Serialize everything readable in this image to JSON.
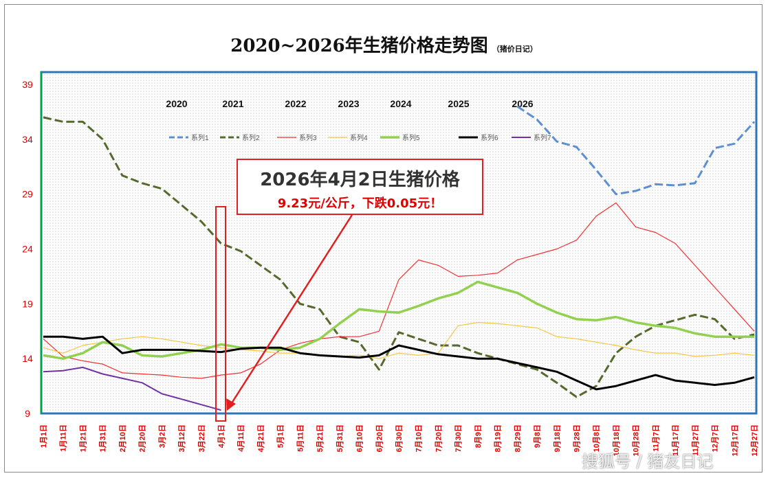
{
  "title": "2020~2026年生猪价格走势图",
  "subtitle": "（猪价日记）",
  "callout": {
    "line1": "2026年4月2日生猪价格",
    "line2": "9.23元/公斤，下跌0.05元！"
  },
  "watermark": "搜狐号 / 猪友日记",
  "colors": {
    "series1": "#5b8fd0",
    "series2": "#55692d",
    "series3": "#f03030",
    "series4": "#f5c542",
    "series5": "#92d050",
    "series6": "#000000",
    "series7": "#7030a0",
    "accent": "#e02020",
    "axis_labels": "#e00000"
  },
  "chart_data": {
    "type": "line",
    "title": "2020~2026年生猪价格走势图",
    "ylim": [
      9,
      39
    ],
    "yticks": [
      9,
      14,
      19,
      24,
      29,
      34,
      39
    ],
    "grid": "dotted background",
    "legend_position": "top",
    "year_labels": [
      "2020",
      "2021",
      "2022",
      "2023",
      "2024",
      "2025",
      "2026"
    ],
    "categories": [
      "1月1日",
      "1月11日",
      "1月21日",
      "1月31日",
      "2月10日",
      "2月20日",
      "3月2日",
      "3月12日",
      "3月22日",
      "4月1日",
      "4月11日",
      "4月21日",
      "5月1日",
      "5月11日",
      "5月21日",
      "5月31日",
      "6月10日",
      "6月20日",
      "6月30日",
      "7月10日",
      "7月20日",
      "7月30日",
      "8月9日",
      "8月19日",
      "8月29日",
      "9月8日",
      "9月18日",
      "9月28日",
      "10月8日",
      "10月18日",
      "10月28日",
      "11月7日",
      "11月17日",
      "11月27日",
      "12月7日",
      "12月17日",
      "12月27日"
    ],
    "series": [
      {
        "name": "系列1",
        "style": "dashed",
        "values": [
          null,
          null,
          null,
          null,
          null,
          null,
          null,
          null,
          null,
          null,
          null,
          null,
          null,
          null,
          null,
          null,
          null,
          null,
          null,
          null,
          null,
          null,
          null,
          null,
          37.0,
          35.8,
          33.8,
          33.3,
          31.2,
          29.0,
          29.3,
          29.9,
          29.8,
          30.0,
          33.2,
          33.6,
          35.6
        ]
      },
      {
        "name": "系列2",
        "style": "dashed",
        "values": [
          36.0,
          35.6,
          35.6,
          34.0,
          30.7,
          30.0,
          29.5,
          28.0,
          26.5,
          24.5,
          23.8,
          22.5,
          21.2,
          19.0,
          18.5,
          16.0,
          15.5,
          13.0,
          16.4,
          15.8,
          15.2,
          15.2,
          14.5,
          14.0,
          13.5,
          13.0,
          11.8,
          10.5,
          11.5,
          14.5,
          16.0,
          17.0,
          17.5,
          18.0,
          17.6,
          15.8,
          16.2
        ]
      },
      {
        "name": "系列3",
        "style": "solid",
        "values": [
          15.8,
          14.2,
          13.8,
          13.5,
          12.7,
          12.6,
          12.5,
          12.3,
          12.2,
          12.5,
          12.7,
          13.5,
          14.8,
          15.4,
          15.8,
          16.0,
          16.0,
          16.5,
          21.2,
          23.0,
          22.5,
          21.5,
          21.6,
          21.8,
          23.0,
          23.5,
          24.0,
          24.8,
          27.0,
          28.2,
          26.0,
          25.5,
          24.5,
          22.5,
          20.5,
          18.5,
          16.5
        ]
      },
      {
        "name": "系列4",
        "style": "solid",
        "values": [
          15.0,
          14.5,
          15.2,
          15.5,
          15.8,
          16.0,
          15.8,
          15.5,
          15.2,
          15.0,
          14.8,
          14.7,
          14.5,
          14.5,
          14.3,
          14.2,
          14.3,
          14.0,
          14.5,
          14.3,
          14.5,
          17.0,
          17.3,
          17.2,
          17.0,
          16.8,
          16.0,
          15.8,
          15.5,
          15.2,
          14.8,
          14.5,
          14.5,
          14.2,
          14.3,
          14.5,
          14.3
        ]
      },
      {
        "name": "系列5",
        "style": "solid",
        "values": [
          14.3,
          14.0,
          14.5,
          15.5,
          15.2,
          14.3,
          14.2,
          14.5,
          14.8,
          15.3,
          15.0,
          15.0,
          14.8,
          15.0,
          15.8,
          17.2,
          18.5,
          18.3,
          18.2,
          18.8,
          19.5,
          20.0,
          21.0,
          20.5,
          20.0,
          19.0,
          18.2,
          17.6,
          17.5,
          17.8,
          17.3,
          17.0,
          16.8,
          16.3,
          16.0,
          16.0,
          16.0
        ]
      },
      {
        "name": "系列6",
        "style": "solid",
        "values": [
          16.0,
          16.0,
          15.8,
          16.0,
          14.5,
          14.8,
          14.8,
          14.8,
          14.7,
          14.6,
          14.9,
          15.0,
          15.0,
          14.5,
          14.3,
          14.2,
          14.1,
          14.3,
          15.2,
          14.8,
          14.4,
          14.2,
          14.0,
          14.0,
          13.6,
          13.2,
          12.8,
          12.0,
          11.2,
          11.5,
          12.0,
          12.5,
          12.0,
          11.8,
          11.6,
          11.8,
          12.3
        ]
      },
      {
        "name": "系列7",
        "style": "solid",
        "values": [
          12.8,
          12.9,
          13.2,
          12.6,
          12.2,
          11.8,
          10.8,
          10.3,
          9.8,
          9.3,
          null,
          null,
          null,
          null,
          null,
          null,
          null,
          null,
          null,
          null,
          null,
          null,
          null,
          null,
          null,
          null,
          null,
          null,
          null,
          null,
          null,
          null,
          null,
          null,
          null,
          null,
          null
        ]
      }
    ]
  }
}
